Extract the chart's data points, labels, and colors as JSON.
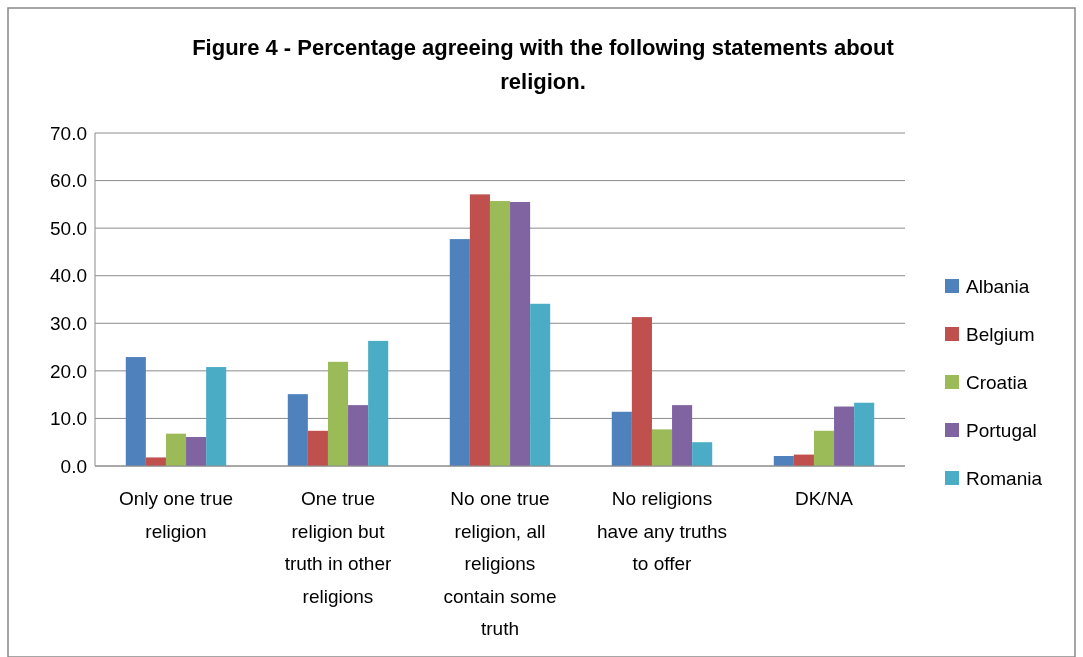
{
  "chart_data": {
    "type": "bar",
    "title": "Figure 4 - Percentage agreeing with the following statements about religion.",
    "categories": [
      "Only one true religion",
      "One true religion but truth in other religions",
      "No one true religion, all religions contain some truth",
      "No religions have any truths to offer",
      "DK/NA"
    ],
    "series": [
      {
        "name": "Albania",
        "color": "#4f81bd",
        "values": [
          22.9,
          15.1,
          47.7,
          11.4,
          2.1
        ]
      },
      {
        "name": "Belgium",
        "color": "#c0504d",
        "values": [
          1.8,
          7.4,
          57.1,
          31.3,
          2.4
        ]
      },
      {
        "name": "Croatia",
        "color": "#9bbb59",
        "values": [
          6.8,
          21.9,
          55.7,
          7.7,
          7.4
        ]
      },
      {
        "name": "Portugal",
        "color": "#8064a2",
        "values": [
          6.1,
          12.8,
          55.5,
          12.8,
          12.5
        ]
      },
      {
        "name": "Romania",
        "color": "#4bacc6",
        "values": [
          20.8,
          26.3,
          34.1,
          5.0,
          13.3
        ]
      }
    ],
    "ylim": [
      0,
      70
    ],
    "yticks": [
      {
        "value": 0,
        "label": "0.0"
      },
      {
        "value": 10,
        "label": "10.0"
      },
      {
        "value": 20,
        "label": "20.0"
      },
      {
        "value": 30,
        "label": "30.0"
      },
      {
        "value": 40,
        "label": "40.0"
      },
      {
        "value": 50,
        "label": "50.0"
      },
      {
        "value": 60,
        "label": "60.0"
      },
      {
        "value": 70,
        "label": "70.0"
      }
    ],
    "grid": "y",
    "legend": "right"
  }
}
